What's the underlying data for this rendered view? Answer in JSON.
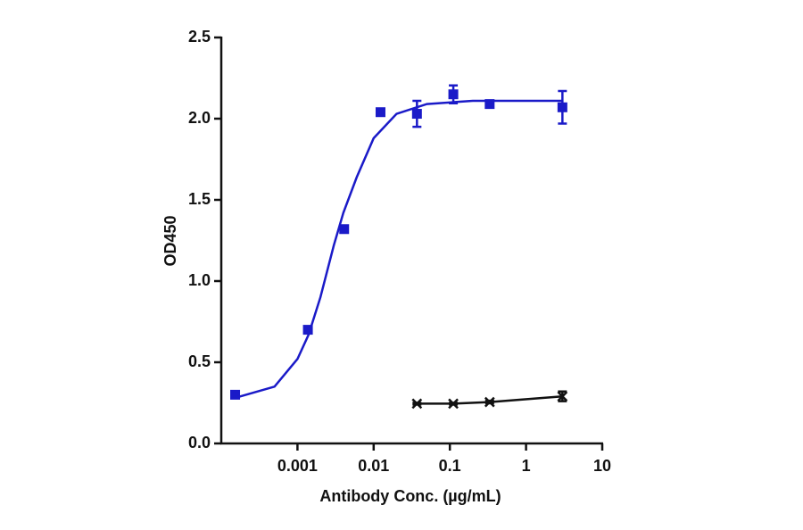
{
  "chart_data": {
    "type": "scatter",
    "x_label": "Antibody Conc. (µg/mL)",
    "y_label": "OD450",
    "x_scale": "log",
    "xlim": [
      0.0001,
      10
    ],
    "xticks": [
      0.001,
      0.01,
      0.1,
      1,
      10
    ],
    "ylim": [
      0,
      2.5
    ],
    "yticks": [
      {
        "value": 0,
        "label": "0.0"
      },
      0.5,
      {
        "value": 1,
        "label": "1.0"
      },
      1.5,
      {
        "value": 2,
        "label": "2.0"
      },
      2.5
    ],
    "grid": false,
    "series": [
      {
        "color": "#1a1ac8",
        "marker": "square",
        "line": false,
        "x": [
          0.000152,
          0.00137,
          0.0041,
          0.0123,
          0.037,
          0.111,
          0.333,
          3
        ],
        "values": [
          0.3,
          0.7,
          1.32,
          2.04,
          2.03,
          2.15,
          2.09,
          2.07
        ],
        "errors": [
          null,
          null,
          null,
          null,
          0.08,
          0.055,
          0.02,
          0.1
        ]
      },
      {
        "color": "#111111",
        "marker": "x",
        "line": true,
        "x": [
          0.037,
          0.111,
          0.333,
          3
        ],
        "values": [
          0.245,
          0.245,
          0.255,
          0.29
        ],
        "errors": [
          0.005,
          0.005,
          0.008,
          0.03
        ]
      }
    ],
    "curves": [
      {
        "color": "#1a1ac8",
        "x": [
          0.00015,
          0.0005,
          0.001,
          0.0014,
          0.002,
          0.003,
          0.004,
          0.006,
          0.01,
          0.02,
          0.05,
          0.2,
          3
        ],
        "values": [
          0.28,
          0.35,
          0.52,
          0.67,
          0.9,
          1.22,
          1.42,
          1.64,
          1.88,
          2.03,
          2.09,
          2.11,
          2.11
        ]
      }
    ]
  }
}
